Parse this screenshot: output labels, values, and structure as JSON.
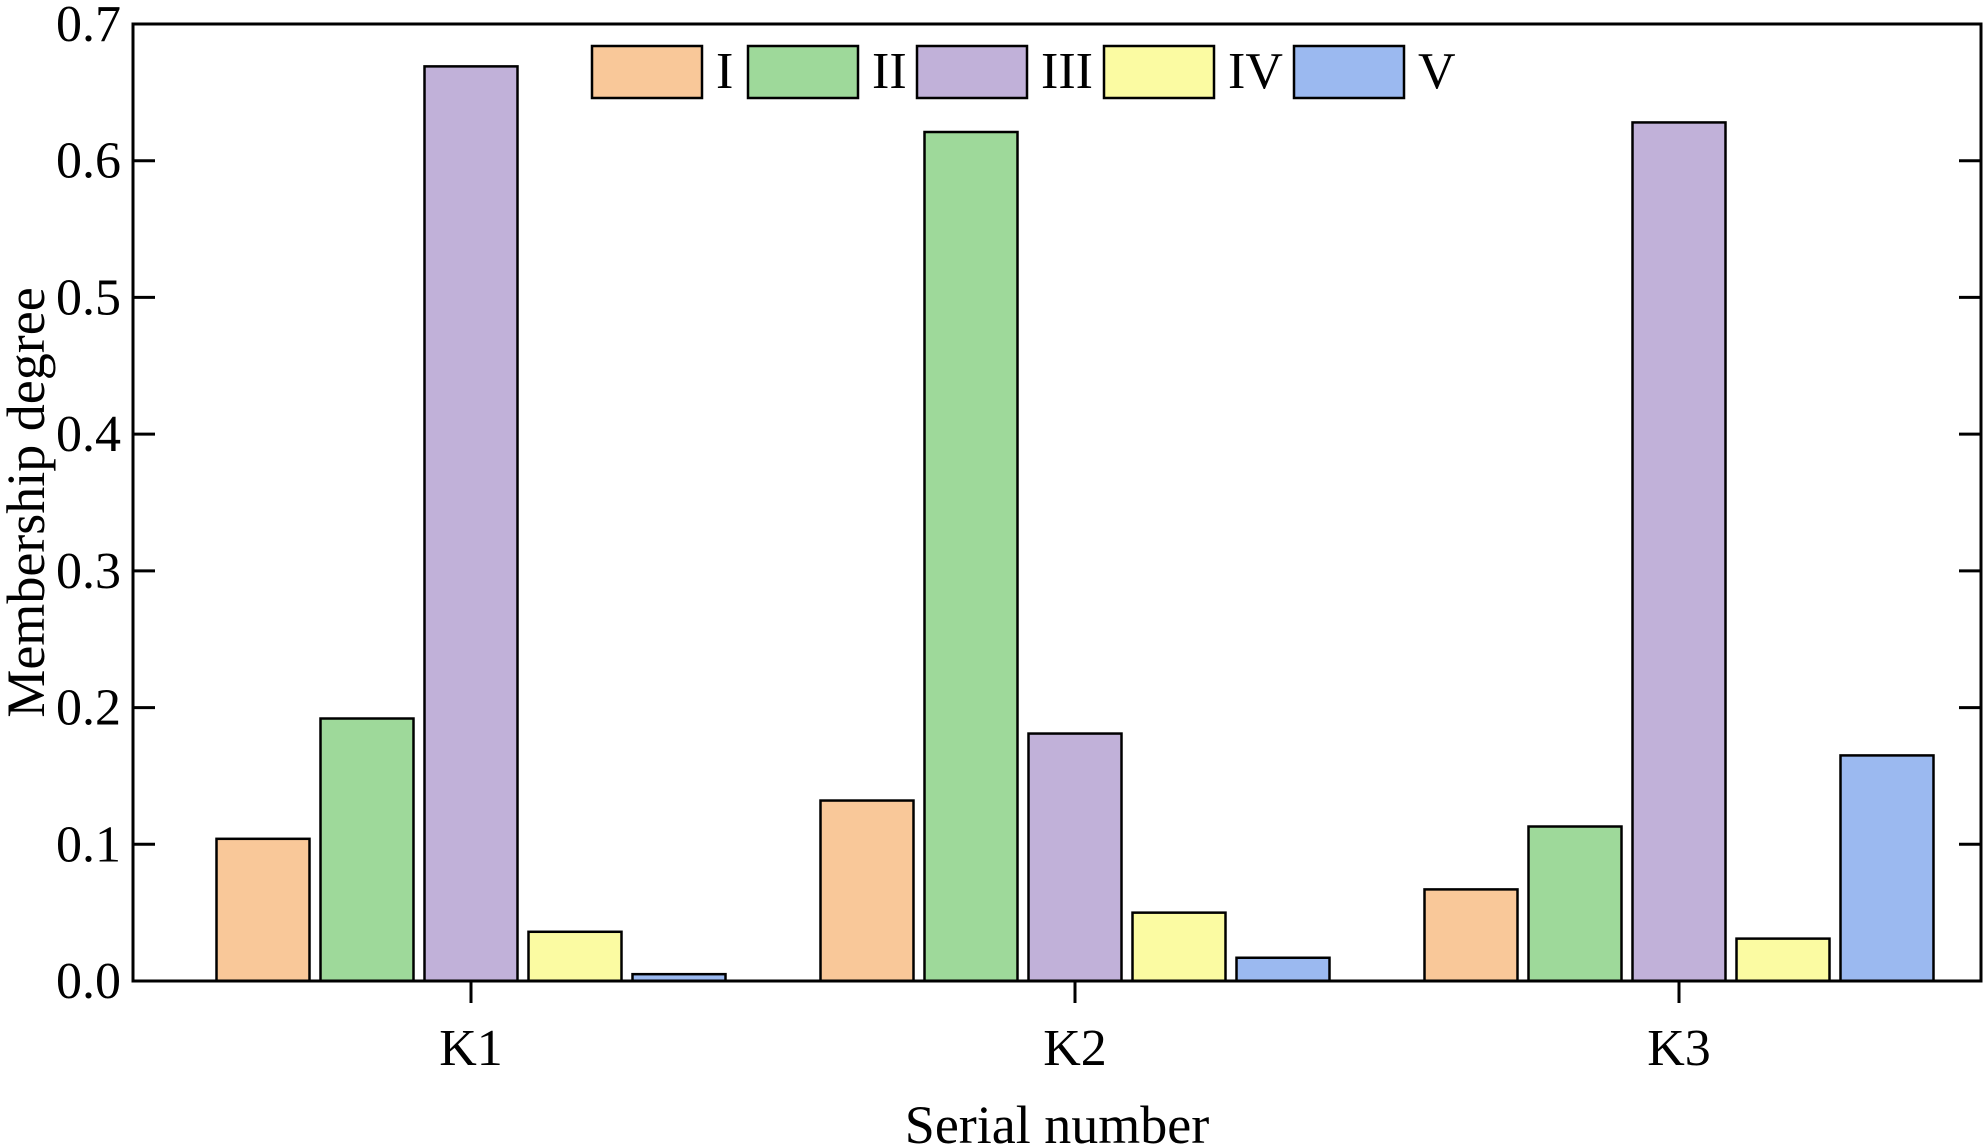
{
  "chart_data": {
    "type": "bar",
    "title": "",
    "xlabel": "Serial number",
    "ylabel": "Membership degree",
    "ylim": [
      0,
      0.7
    ],
    "yticks": [
      "0.0",
      "0.1",
      "0.2",
      "0.3",
      "0.4",
      "0.5",
      "0.6",
      "0.7"
    ],
    "categories": [
      "K1",
      "K2",
      "K3"
    ],
    "series": [
      {
        "name": "I",
        "color": "#F9C899",
        "values": [
          0.104,
          0.132,
          0.067
        ]
      },
      {
        "name": "II",
        "color": "#9ED99A",
        "values": [
          0.192,
          0.621,
          0.113
        ]
      },
      {
        "name": "III",
        "color": "#C1B1D9",
        "values": [
          0.669,
          0.181,
          0.628
        ]
      },
      {
        "name": "IV",
        "color": "#FBFBA2",
        "values": [
          0.036,
          0.05,
          0.031
        ]
      },
      {
        "name": "V",
        "color": "#9BB9F0",
        "values": [
          0.005,
          0.017,
          0.165
        ]
      }
    ],
    "legend_position": "top-center",
    "grid": false
  }
}
